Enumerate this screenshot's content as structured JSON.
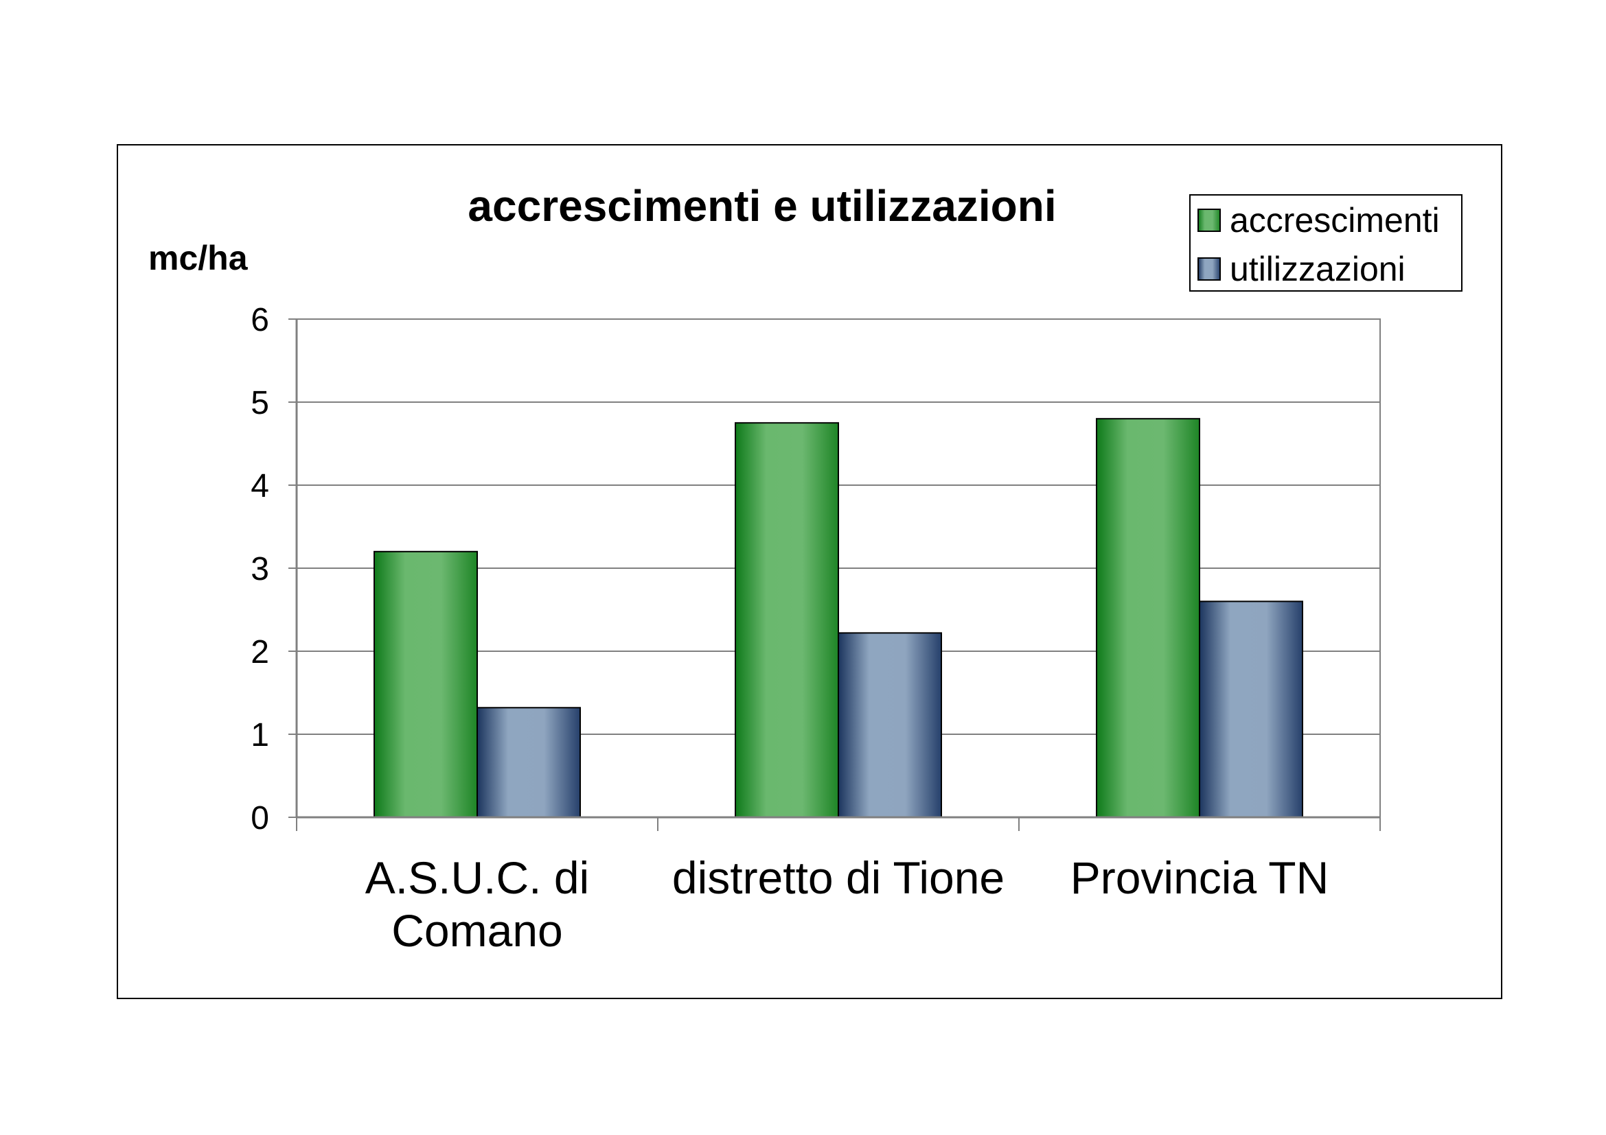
{
  "chart_data": {
    "type": "bar",
    "title": "accrescimenti e utilizzazioni",
    "ylabel": "mc/ha",
    "xlabel": "",
    "categories": [
      [
        "A.S.U.C. di",
        "Comano"
      ],
      [
        "distretto di Tione"
      ],
      [
        "Provincia TN"
      ]
    ],
    "series": [
      {
        "name": "accrescimenti",
        "values": [
          3.2,
          4.75,
          4.8
        ],
        "color": "#2e9e3a"
      },
      {
        "name": "utilizzazioni",
        "values": [
          1.32,
          2.22,
          2.6
        ],
        "color": "#5d7396"
      }
    ],
    "ylim": [
      0,
      6
    ],
    "yticks": [
      0,
      1,
      2,
      3,
      4,
      5,
      6
    ],
    "grid": true,
    "legend": "top-right"
  }
}
